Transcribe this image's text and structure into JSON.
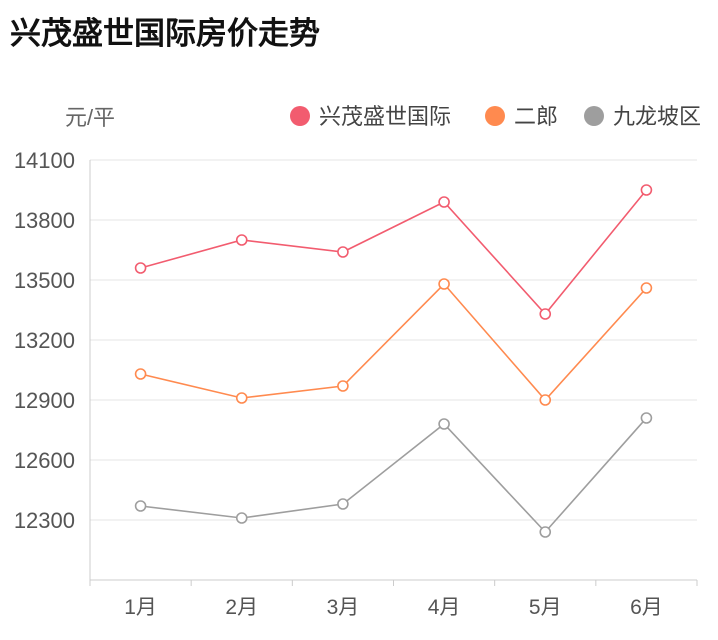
{
  "chart_data": {
    "type": "line",
    "title": "兴茂盛世国际房价走势",
    "ylabel": "元/平",
    "categories": [
      "1月",
      "2月",
      "3月",
      "4月",
      "5月",
      "6月"
    ],
    "ylim": [
      12000,
      14100
    ],
    "yticks": [
      14100,
      13800,
      13500,
      13200,
      12900,
      12600,
      12300
    ],
    "grid": true,
    "legend": "top-right",
    "series": [
      {
        "name": "兴茂盛世国际",
        "color": "#f25c6f",
        "values": [
          13560,
          13700,
          13640,
          13890,
          13330,
          13950
        ]
      },
      {
        "name": "二郎",
        "color": "#ff8a4f",
        "values": [
          13030,
          12910,
          12970,
          13480,
          12900,
          13460
        ]
      },
      {
        "name": "九龙坡区",
        "color": "#9e9e9e",
        "values": [
          12370,
          12310,
          12380,
          12780,
          12240,
          12810
        ]
      }
    ]
  }
}
